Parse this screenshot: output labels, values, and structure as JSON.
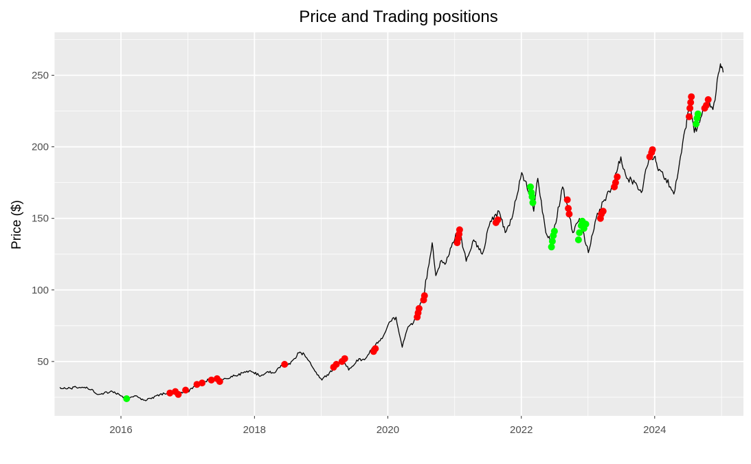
{
  "chart_data": {
    "type": "line",
    "title": "Price and Trading positions",
    "xlabel": "",
    "ylabel": "Price ($)",
    "xlim": [
      "2015-01-01",
      "2025-05-01"
    ],
    "ylim": [
      12,
      280
    ],
    "x_ticks": [
      {
        "value": "2016-01-01",
        "label": "2016"
      },
      {
        "value": "2018-01-01",
        "label": "2018"
      },
      {
        "value": "2020-01-01",
        "label": "2020"
      },
      {
        "value": "2022-01-01",
        "label": "2022"
      },
      {
        "value": "2024-01-01",
        "label": "2024"
      }
    ],
    "x_minor_ticks": [
      "2015-01-01",
      "2017-01-01",
      "2019-01-01",
      "2021-01-01",
      "2023-01-01",
      "2025-01-01"
    ],
    "y_ticks": [
      50,
      100,
      150,
      200,
      250
    ],
    "y_minor_ticks": [
      25,
      75,
      125,
      175,
      225,
      275
    ],
    "grid": true,
    "background": "#ebebeb",
    "gridline_color": "#ffffff",
    "line_color": "#000000",
    "position_colors": {
      "red": "#ff0000",
      "green": "#00ff00"
    },
    "series": [
      {
        "type": "line",
        "points": [
          [
            "2015-02-01",
            32
          ],
          [
            "2015-03-15",
            31
          ],
          [
            "2015-05-01",
            32
          ],
          [
            "2015-06-15",
            32
          ],
          [
            "2015-08-01",
            30
          ],
          [
            "2015-08-25",
            27
          ],
          [
            "2015-10-01",
            28
          ],
          [
            "2015-11-15",
            29
          ],
          [
            "2016-01-01",
            26
          ],
          [
            "2016-02-01",
            24
          ],
          [
            "2016-03-15",
            26
          ],
          [
            "2016-05-10",
            23
          ],
          [
            "2016-06-15",
            24
          ],
          [
            "2016-08-01",
            27
          ],
          [
            "2016-09-15",
            28
          ],
          [
            "2016-11-15",
            28
          ],
          [
            "2017-01-01",
            29
          ],
          [
            "2017-02-20",
            34
          ],
          [
            "2017-04-01",
            36
          ],
          [
            "2017-05-15",
            38
          ],
          [
            "2017-06-20",
            36
          ],
          [
            "2017-08-01",
            38
          ],
          [
            "2017-09-15",
            40
          ],
          [
            "2017-11-01",
            42
          ],
          [
            "2017-12-15",
            43
          ],
          [
            "2018-02-05",
            40
          ],
          [
            "2018-03-15",
            43
          ],
          [
            "2018-04-15",
            42
          ],
          [
            "2018-06-01",
            47
          ],
          [
            "2018-07-15",
            48
          ],
          [
            "2018-09-01",
            56
          ],
          [
            "2018-10-01",
            55
          ],
          [
            "2018-11-15",
            46
          ],
          [
            "2019-01-05",
            37
          ],
          [
            "2019-02-15",
            42
          ],
          [
            "2019-04-01",
            48
          ],
          [
            "2019-05-01",
            52
          ],
          [
            "2019-06-01",
            44
          ],
          [
            "2019-07-15",
            51
          ],
          [
            "2019-09-01",
            52
          ],
          [
            "2019-10-15",
            60
          ],
          [
            "2019-12-01",
            66
          ],
          [
            "2020-01-15",
            78
          ],
          [
            "2020-02-15",
            81
          ],
          [
            "2020-03-20",
            60
          ],
          [
            "2020-04-15",
            72
          ],
          [
            "2020-06-01",
            80
          ],
          [
            "2020-07-15",
            96
          ],
          [
            "2020-08-31",
            133
          ],
          [
            "2020-09-20",
            110
          ],
          [
            "2020-10-15",
            120
          ],
          [
            "2020-11-15",
            119
          ],
          [
            "2020-12-20",
            133
          ],
          [
            "2021-01-25",
            143
          ],
          [
            "2021-03-05",
            120
          ],
          [
            "2021-04-15",
            135
          ],
          [
            "2021-06-01",
            125
          ],
          [
            "2021-07-15",
            148
          ],
          [
            "2021-09-01",
            155
          ],
          [
            "2021-10-05",
            140
          ],
          [
            "2021-11-15",
            152
          ],
          [
            "2022-01-03",
            182
          ],
          [
            "2022-02-15",
            168
          ],
          [
            "2022-03-10",
            155
          ],
          [
            "2022-04-01",
            178
          ],
          [
            "2022-05-15",
            140
          ],
          [
            "2022-06-15",
            133
          ],
          [
            "2022-08-15",
            172
          ],
          [
            "2022-09-15",
            155
          ],
          [
            "2022-10-10",
            140
          ],
          [
            "2022-11-15",
            150
          ],
          [
            "2023-01-03",
            126
          ],
          [
            "2023-02-15",
            150
          ],
          [
            "2023-04-01",
            163
          ],
          [
            "2023-05-15",
            172
          ],
          [
            "2023-06-30",
            193
          ],
          [
            "2023-08-01",
            178
          ],
          [
            "2023-09-15",
            175
          ],
          [
            "2023-10-20",
            168
          ],
          [
            "2023-12-01",
            192
          ],
          [
            "2023-12-31",
            193
          ],
          [
            "2024-01-15",
            186
          ],
          [
            "2024-03-01",
            178
          ],
          [
            "2024-04-15",
            167
          ],
          [
            "2024-05-15",
            188
          ],
          [
            "2024-06-15",
            212
          ],
          [
            "2024-07-15",
            230
          ],
          [
            "2024-08-05",
            210
          ],
          [
            "2024-09-15",
            222
          ],
          [
            "2024-10-20",
            234
          ],
          [
            "2024-11-15",
            226
          ],
          [
            "2024-12-26",
            258
          ],
          [
            "2025-01-10",
            252
          ]
        ]
      },
      {
        "type": "scatter",
        "color": "#ff0000",
        "points": [
          [
            "2016-09-25",
            28
          ],
          [
            "2016-10-25",
            29
          ],
          [
            "2016-11-10",
            27
          ],
          [
            "2016-12-20",
            30
          ],
          [
            "2017-02-20",
            34
          ],
          [
            "2017-03-20",
            35
          ],
          [
            "2017-05-10",
            37
          ],
          [
            "2017-06-10",
            38
          ],
          [
            "2017-06-25",
            36
          ],
          [
            "2018-06-15",
            48
          ],
          [
            "2019-03-10",
            46
          ],
          [
            "2019-03-25",
            48
          ],
          [
            "2019-04-25",
            50
          ],
          [
            "2019-05-10",
            52
          ],
          [
            "2019-10-15",
            57
          ],
          [
            "2019-10-25",
            59
          ],
          [
            "2020-06-10",
            81
          ],
          [
            "2020-06-15",
            84
          ],
          [
            "2020-06-20",
            87
          ],
          [
            "2020-07-15",
            93
          ],
          [
            "2020-07-20",
            96
          ],
          [
            "2021-01-15",
            133
          ],
          [
            "2021-01-20",
            136
          ],
          [
            "2021-01-25",
            139
          ],
          [
            "2021-01-28",
            142
          ],
          [
            "2021-08-15",
            147
          ],
          [
            "2021-08-25",
            149
          ],
          [
            "2022-09-10",
            163
          ],
          [
            "2022-09-15",
            157
          ],
          [
            "2022-09-20",
            153
          ],
          [
            "2023-03-10",
            150
          ],
          [
            "2023-03-15",
            153
          ],
          [
            "2023-03-25",
            155
          ],
          [
            "2023-05-25",
            172
          ],
          [
            "2023-06-01",
            175
          ],
          [
            "2023-06-10",
            179
          ],
          [
            "2023-12-05",
            193
          ],
          [
            "2023-12-15",
            196
          ],
          [
            "2023-12-20",
            198
          ],
          [
            "2024-07-08",
            221
          ],
          [
            "2024-07-12",
            227
          ],
          [
            "2024-07-16",
            231
          ],
          [
            "2024-07-20",
            235
          ],
          [
            "2024-10-01",
            227
          ],
          [
            "2024-10-10",
            229
          ],
          [
            "2024-10-20",
            233
          ]
        ]
      },
      {
        "type": "scatter",
        "color": "#00ff00",
        "points": [
          [
            "2016-02-01",
            24
          ],
          [
            "2022-02-20",
            172
          ],
          [
            "2022-02-25",
            168
          ],
          [
            "2022-03-01",
            165
          ],
          [
            "2022-03-05",
            161
          ],
          [
            "2022-06-15",
            130
          ],
          [
            "2022-06-20",
            134
          ],
          [
            "2022-06-25",
            138
          ],
          [
            "2022-07-01",
            141
          ],
          [
            "2022-11-10",
            135
          ],
          [
            "2022-11-15",
            140
          ],
          [
            "2022-11-25",
            145
          ],
          [
            "2022-12-01",
            148
          ],
          [
            "2022-12-10",
            143
          ],
          [
            "2022-12-20",
            146
          ],
          [
            "2024-08-15",
            216
          ],
          [
            "2024-08-20",
            220
          ],
          [
            "2024-08-25",
            223
          ]
        ]
      }
    ]
  }
}
